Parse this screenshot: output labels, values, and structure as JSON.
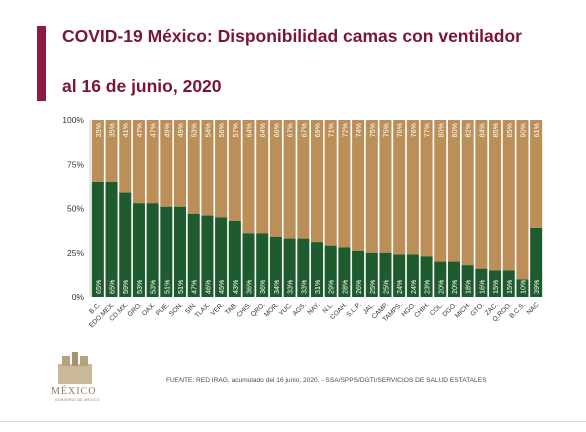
{
  "slide": {
    "title_line1": "COVID-19 México: Disponibilidad camas con ventilador",
    "title_line2": "al 16 de junio, 2020",
    "footer": "FUENTE: RED IRAG, acumulado del 16 junio, 2020. - SSA/SPPS/DGTI/SERVICIOS DE SALUD ESTATALES",
    "logo_text": "MÉXICO",
    "logo_subtext": "GOBIERNO DE MÉXICO"
  },
  "colors": {
    "title": "#7a1634",
    "accent_bar": "#8c1d3f",
    "occupied": "#1e5b2e",
    "available": "#bb8f57"
  },
  "chart_data": {
    "type": "bar",
    "stacked": true,
    "normalized": true,
    "categories": [
      "B.C.",
      "EDO.MEX.",
      "CD.MX.",
      "GRO.",
      "OAX.",
      "PUE.",
      "SON.",
      "SIN.",
      "TLAX.",
      "VER.",
      "TAB.",
      "CHIS.",
      "QRO.",
      "MOR.",
      "YUC.",
      "AGS.",
      "NAY.",
      "N.L.",
      "COAH.",
      "S.L.P.",
      "JAL.",
      "CAMP.",
      "TAMPS.",
      "HGO.",
      "CHIH.",
      "COL.",
      "DGO.",
      "MICH.",
      "GTO.",
      "ZAC.",
      "Q.ROO.",
      "B.C.S.",
      "NAC"
    ],
    "series": [
      {
        "values": [
          65,
          65,
          59,
          53,
          53,
          51,
          51,
          47,
          46,
          45,
          43,
          36,
          36,
          34,
          33,
          33,
          31,
          29,
          28,
          26,
          25,
          25,
          24,
          24,
          23,
          20,
          20,
          18,
          16,
          15,
          15,
          10,
          39
        ]
      },
      {
        "values": [
          35,
          35,
          41,
          47,
          47,
          49,
          49,
          53,
          54,
          56,
          57,
          64,
          64,
          66,
          67,
          67,
          69,
          71,
          72,
          74,
          75,
          75,
          76,
          76,
          77,
          80,
          80,
          82,
          84,
          85,
          85,
          90,
          61
        ]
      }
    ],
    "y_ticks": [
      "0%",
      "25%",
      "50%",
      "75%",
      "100%"
    ],
    "ylim": [
      0,
      100
    ],
    "grid": false,
    "legend": "none"
  }
}
